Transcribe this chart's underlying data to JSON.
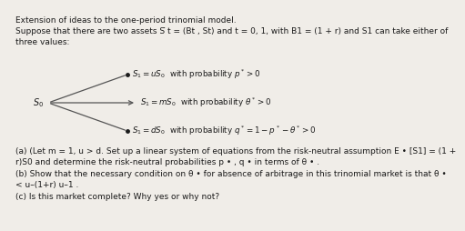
{
  "title": "Extension of ideas to the one-period trinomial model.",
  "intro": "Suppose that there are two assets S̅ t = (Bt , St) and t = 0, 1, with B1 = (1 + r) and S1 can take either of\nthree values:",
  "branch_up": "$S_1 = uS_0$  with probability $p^* > 0$",
  "branch_mid": "$S_1 = mS_0$  with probability $\\theta^* > 0$",
  "branch_dn": "$S_1 = dS_0$  with probability $q^* = 1 - p^* - \\theta^* > 0$",
  "part_a": "(a) (Let m = 1, u > d. Set up a linear system of equations from the risk-neutral assumption E • [S1] = (1 +\nr)S0 and determine the risk-neutral probabilities p • , q • in terms of θ • .",
  "part_b": "(b) Show that the necessary condition on θ • for absence of arbitrage in this trinomial market is that θ •\n< u–(1+r) u–1 .",
  "part_c": "(c) Is this market complete? Why yes or why not?",
  "bg_color": "#f0ede8",
  "text_color": "#1a1a1a",
  "line_color": "#555555",
  "fs": 6.5,
  "fs_branch": 6.3
}
